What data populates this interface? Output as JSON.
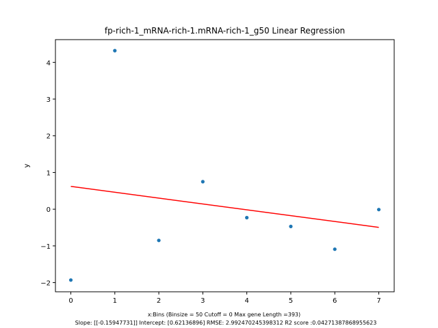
{
  "chart_data": {
    "type": "scatter",
    "title": "fp-rich-1_mRNA-rich-1.mRNA-rich-1_g50 Linear Regression",
    "xlabel": "x:Bins  (Binsize = 50 Cutoff = 0 Max gene Length =393)",
    "ylabel": "y",
    "footer": "Slope: [[-0.15947731]] Intercept: [0.62136896] RMSE: 2.992470245398312 R2 score :0.04271387868955623",
    "xlim": [
      -0.35,
      7.35
    ],
    "ylim": [
      -2.25,
      4.62
    ],
    "xticks": [
      0,
      1,
      2,
      3,
      4,
      5,
      6,
      7
    ],
    "yticks": [
      -2,
      -1,
      0,
      1,
      2,
      3,
      4
    ],
    "grid": false,
    "series": [
      {
        "type": "scatter",
        "color": "#1f77b4",
        "x": [
          0,
          1,
          2,
          3,
          4,
          5,
          6,
          7
        ],
        "y": [
          -1.93,
          4.32,
          -0.85,
          0.75,
          -0.23,
          -0.47,
          -1.09,
          -0.01
        ]
      },
      {
        "type": "line",
        "color": "#ff0000",
        "x": [
          0,
          7
        ],
        "y": [
          0.62136896,
          -0.49497221
        ]
      }
    ]
  }
}
